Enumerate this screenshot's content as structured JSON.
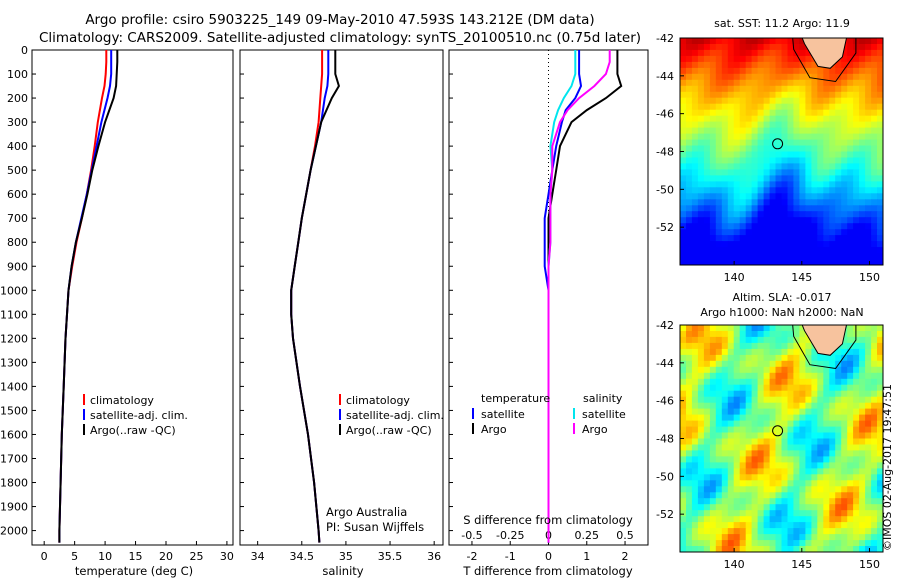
{
  "header": {
    "title_line1": "Argo profile: csiro 5903225_149 09-May-2010 47.593S 143.212E (DM data)",
    "title_line2": "Climatology: CARS2009. Satellite-adjusted climatology: synTS_20100510.nc (0.75d later)"
  },
  "colors": {
    "climatology": "#ff0000",
    "satellite": "#0000ff",
    "argo": "#000000",
    "salinity_satellite": "#00e5ee",
    "salinity_argo": "#ff00ff"
  },
  "chart_data": [
    {
      "type": "line",
      "id": "temperature",
      "xlabel": "temperature (deg C)",
      "ylabel": "",
      "xlim": [
        -2,
        31
      ],
      "ylim": [
        2060,
        0
      ],
      "xticks": [
        0,
        5,
        10,
        15,
        20,
        25,
        30
      ],
      "yticks": [
        0,
        100,
        200,
        300,
        400,
        500,
        600,
        700,
        800,
        900,
        1000,
        1100,
        1200,
        1300,
        1400,
        1500,
        1600,
        1700,
        1800,
        1900,
        2000
      ],
      "legend": {
        "placement": "lower-right",
        "entries": [
          "climatology",
          "satellite-adj. clim.",
          "Argo(..raw -QC)"
        ]
      },
      "depth": [
        0,
        50,
        100,
        150,
        200,
        300,
        400,
        500,
        600,
        700,
        800,
        900,
        1000,
        1200,
        1400,
        1600,
        1800,
        2000,
        2050
      ],
      "series": [
        {
          "name": "climatology",
          "values": [
            10.2,
            10.2,
            10.1,
            9.9,
            9.5,
            8.8,
            8.3,
            7.7,
            7.0,
            6.2,
            5.3,
            4.6,
            4.0,
            3.5,
            3.2,
            2.9,
            2.7,
            2.5,
            2.5
          ]
        },
        {
          "name": "satellite-adj. clim.",
          "values": [
            11.0,
            11.0,
            11.0,
            10.8,
            10.4,
            9.4,
            8.6,
            7.8,
            7.0,
            6.1,
            5.2,
            4.5,
            4.0,
            3.5,
            3.2,
            2.9,
            2.7,
            2.5,
            2.5
          ]
        },
        {
          "name": "Argo(..raw -QC)",
          "values": [
            12.0,
            12.0,
            11.9,
            11.8,
            11.4,
            10.0,
            8.9,
            7.9,
            7.1,
            6.2,
            5.2,
            4.5,
            4.0,
            3.5,
            3.2,
            2.9,
            2.7,
            2.5,
            2.5
          ]
        }
      ]
    },
    {
      "type": "line",
      "id": "salinity",
      "xlabel": "salinity",
      "xlim": [
        33.8,
        36.1
      ],
      "ylim": [
        2060,
        0
      ],
      "xticks": [
        34,
        34.5,
        35,
        35.5,
        36
      ],
      "legend": {
        "placement": "lower-right",
        "entries": [
          "climatology",
          "satellite-adj. clim.",
          "Argo(..raw -QC)"
        ]
      },
      "annotation": [
        "Argo Australia",
        "PI: Susan Wijffels"
      ],
      "depth": [
        0,
        50,
        100,
        150,
        200,
        300,
        400,
        500,
        600,
        700,
        800,
        900,
        1000,
        1100,
        1200,
        1400,
        1600,
        1800,
        2000,
        2050
      ],
      "series": [
        {
          "name": "climatology",
          "values": [
            34.73,
            34.73,
            34.73,
            34.72,
            34.71,
            34.69,
            34.65,
            34.6,
            34.55,
            34.5,
            34.46,
            34.42,
            34.38,
            34.38,
            34.4,
            34.48,
            34.57,
            34.64,
            34.69,
            34.7
          ]
        },
        {
          "name": "satellite-adj. clim.",
          "values": [
            34.8,
            34.8,
            34.8,
            34.79,
            34.76,
            34.72,
            34.66,
            34.6,
            34.55,
            34.5,
            34.46,
            34.42,
            34.38,
            34.38,
            34.4,
            34.48,
            34.57,
            34.64,
            34.69,
            34.7
          ]
        },
        {
          "name": "Argo(..raw -QC)",
          "values": [
            34.88,
            34.88,
            34.88,
            34.92,
            34.84,
            34.72,
            34.66,
            34.6,
            34.55,
            34.5,
            34.46,
            34.42,
            34.38,
            34.38,
            34.4,
            34.48,
            34.57,
            34.64,
            34.69,
            34.7
          ]
        }
      ]
    },
    {
      "type": "line",
      "id": "difference",
      "xlabel": "T difference from climatology",
      "xlabel_top": "S difference from climatology",
      "xlim_T": [
        -2.6,
        2.6
      ],
      "xticks_T": [
        -2,
        -1,
        0,
        1,
        2
      ],
      "xticks_S": [
        -0.5,
        -0.25,
        0,
        0.25,
        0.5
      ],
      "ylim": [
        2060,
        0
      ],
      "legend_groups": [
        {
          "heading": "temperature",
          "entries": [
            "satellite",
            "Argo"
          ]
        },
        {
          "heading": "salinity",
          "entries": [
            "satellite",
            "Argo"
          ]
        }
      ],
      "depth": [
        0,
        50,
        100,
        150,
        200,
        250,
        300,
        400,
        500,
        600,
        700,
        800,
        900,
        1000,
        1200,
        1500,
        2000,
        2050
      ],
      "series": [
        {
          "name": "temperature satellite",
          "values_T": [
            0.8,
            0.8,
            0.8,
            0.85,
            0.7,
            0.45,
            0.35,
            0.2,
            0.1,
            0.0,
            -0.1,
            -0.1,
            -0.1,
            0.0,
            0.0,
            0.0,
            0.0,
            0.0
          ]
        },
        {
          "name": "temperature Argo",
          "values_T": [
            1.8,
            1.8,
            1.8,
            1.9,
            1.5,
            1.0,
            0.6,
            0.3,
            0.2,
            0.1,
            0.0,
            0.0,
            0.0,
            0.0,
            0.0,
            0.0,
            0.0,
            0.0
          ]
        },
        {
          "name": "salinity satellite",
          "values_T": [
            0.7,
            0.7,
            0.7,
            0.6,
            0.4,
            0.25,
            0.15,
            0.05,
            0.1,
            0.05,
            0.05,
            0.05,
            0.0,
            0.0,
            0.0,
            0.0,
            0.0,
            0.0
          ]
        },
        {
          "name": "salinity Argo",
          "values_T": [
            1.6,
            1.6,
            1.5,
            1.2,
            0.8,
            0.5,
            0.3,
            0.1,
            0.1,
            0.05,
            0.05,
            0.05,
            0.0,
            0.0,
            0.0,
            0.0,
            0.0,
            0.0
          ]
        }
      ]
    },
    {
      "type": "heatmap",
      "id": "sst_map",
      "title": "sat. SST: 11.2 Argo: 11.9",
      "xlim": [
        136,
        151
      ],
      "ylim": [
        -54,
        -42
      ],
      "xticks": [
        140,
        145,
        150
      ],
      "yticks": [
        -42,
        -44,
        -46,
        -48,
        -50,
        -52
      ],
      "marker": {
        "lon": 143.212,
        "lat": -47.593
      }
    },
    {
      "type": "heatmap",
      "id": "sla_map",
      "title_line1": "Altim. SLA: -0.017",
      "title_line2": "Argo h1000: NaN h2000: NaN",
      "xlim": [
        136,
        151
      ],
      "ylim": [
        -54,
        -42
      ],
      "xticks": [
        140,
        145,
        150
      ],
      "yticks": [
        -42,
        -44,
        -46,
        -48,
        -50,
        -52
      ],
      "marker": {
        "lon": 143.212,
        "lat": -47.593
      }
    }
  ],
  "footer": {
    "stamp": "©IMOS 02-Aug-2017 19:47:51"
  }
}
